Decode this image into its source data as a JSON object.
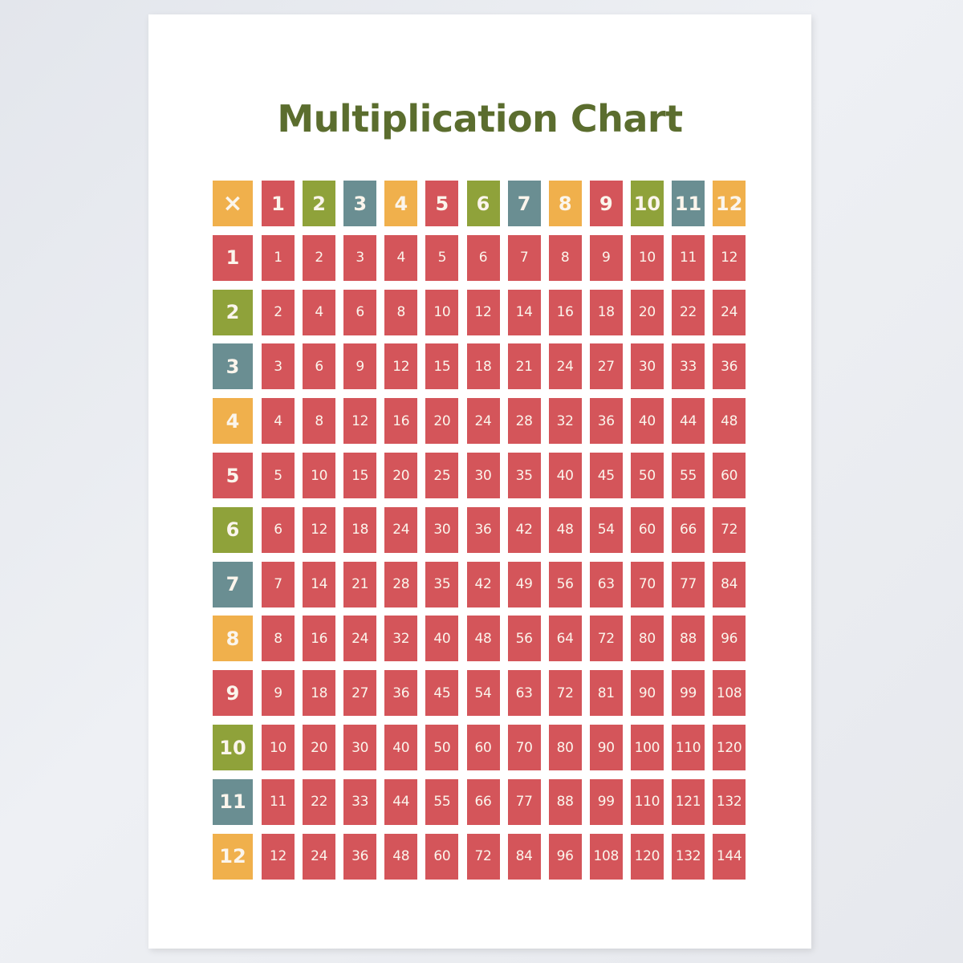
{
  "title": "Multiplication Chart",
  "corner_symbol": "×",
  "colors": {
    "red": "#d4555a",
    "green": "#8fa23a",
    "teal": "#6a8e92",
    "orange": "#f0b04c",
    "title": "#5b6d2e",
    "text": "#fbf5ec"
  },
  "chart_data": {
    "type": "table",
    "title": "Multiplication Chart",
    "corner": "×",
    "column_headers": [
      "1",
      "2",
      "3",
      "4",
      "5",
      "6",
      "7",
      "8",
      "9",
      "10",
      "11",
      "12"
    ],
    "row_headers": [
      "1",
      "2",
      "3",
      "4",
      "5",
      "6",
      "7",
      "8",
      "9",
      "10",
      "11",
      "12"
    ],
    "header_colors": [
      "red",
      "green",
      "teal",
      "orange",
      "red",
      "green",
      "teal",
      "orange",
      "red",
      "green",
      "teal",
      "orange"
    ],
    "row_header_colors": [
      "red",
      "green",
      "teal",
      "orange",
      "red",
      "green",
      "teal",
      "orange",
      "red",
      "green",
      "teal",
      "orange"
    ],
    "rows": [
      [
        1,
        2,
        3,
        4,
        5,
        6,
        7,
        8,
        9,
        10,
        11,
        12
      ],
      [
        2,
        4,
        6,
        8,
        10,
        12,
        14,
        16,
        18,
        20,
        22,
        24
      ],
      [
        3,
        6,
        9,
        12,
        15,
        18,
        21,
        24,
        27,
        30,
        33,
        36
      ],
      [
        4,
        8,
        12,
        16,
        20,
        24,
        28,
        32,
        36,
        40,
        44,
        48
      ],
      [
        5,
        10,
        15,
        20,
        25,
        30,
        35,
        40,
        45,
        50,
        55,
        60
      ],
      [
        6,
        12,
        18,
        24,
        30,
        36,
        42,
        48,
        54,
        60,
        66,
        72
      ],
      [
        7,
        14,
        21,
        28,
        35,
        42,
        49,
        56,
        63,
        70,
        77,
        84
      ],
      [
        8,
        16,
        24,
        32,
        40,
        48,
        56,
        64,
        72,
        80,
        88,
        96
      ],
      [
        9,
        18,
        27,
        36,
        45,
        54,
        63,
        72,
        81,
        90,
        99,
        108
      ],
      [
        10,
        20,
        30,
        40,
        50,
        60,
        70,
        80,
        90,
        100,
        110,
        120
      ],
      [
        11,
        22,
        33,
        44,
        55,
        66,
        77,
        88,
        99,
        110,
        121,
        132
      ],
      [
        12,
        24,
        36,
        48,
        60,
        72,
        84,
        96,
        108,
        120,
        132,
        144
      ]
    ]
  }
}
